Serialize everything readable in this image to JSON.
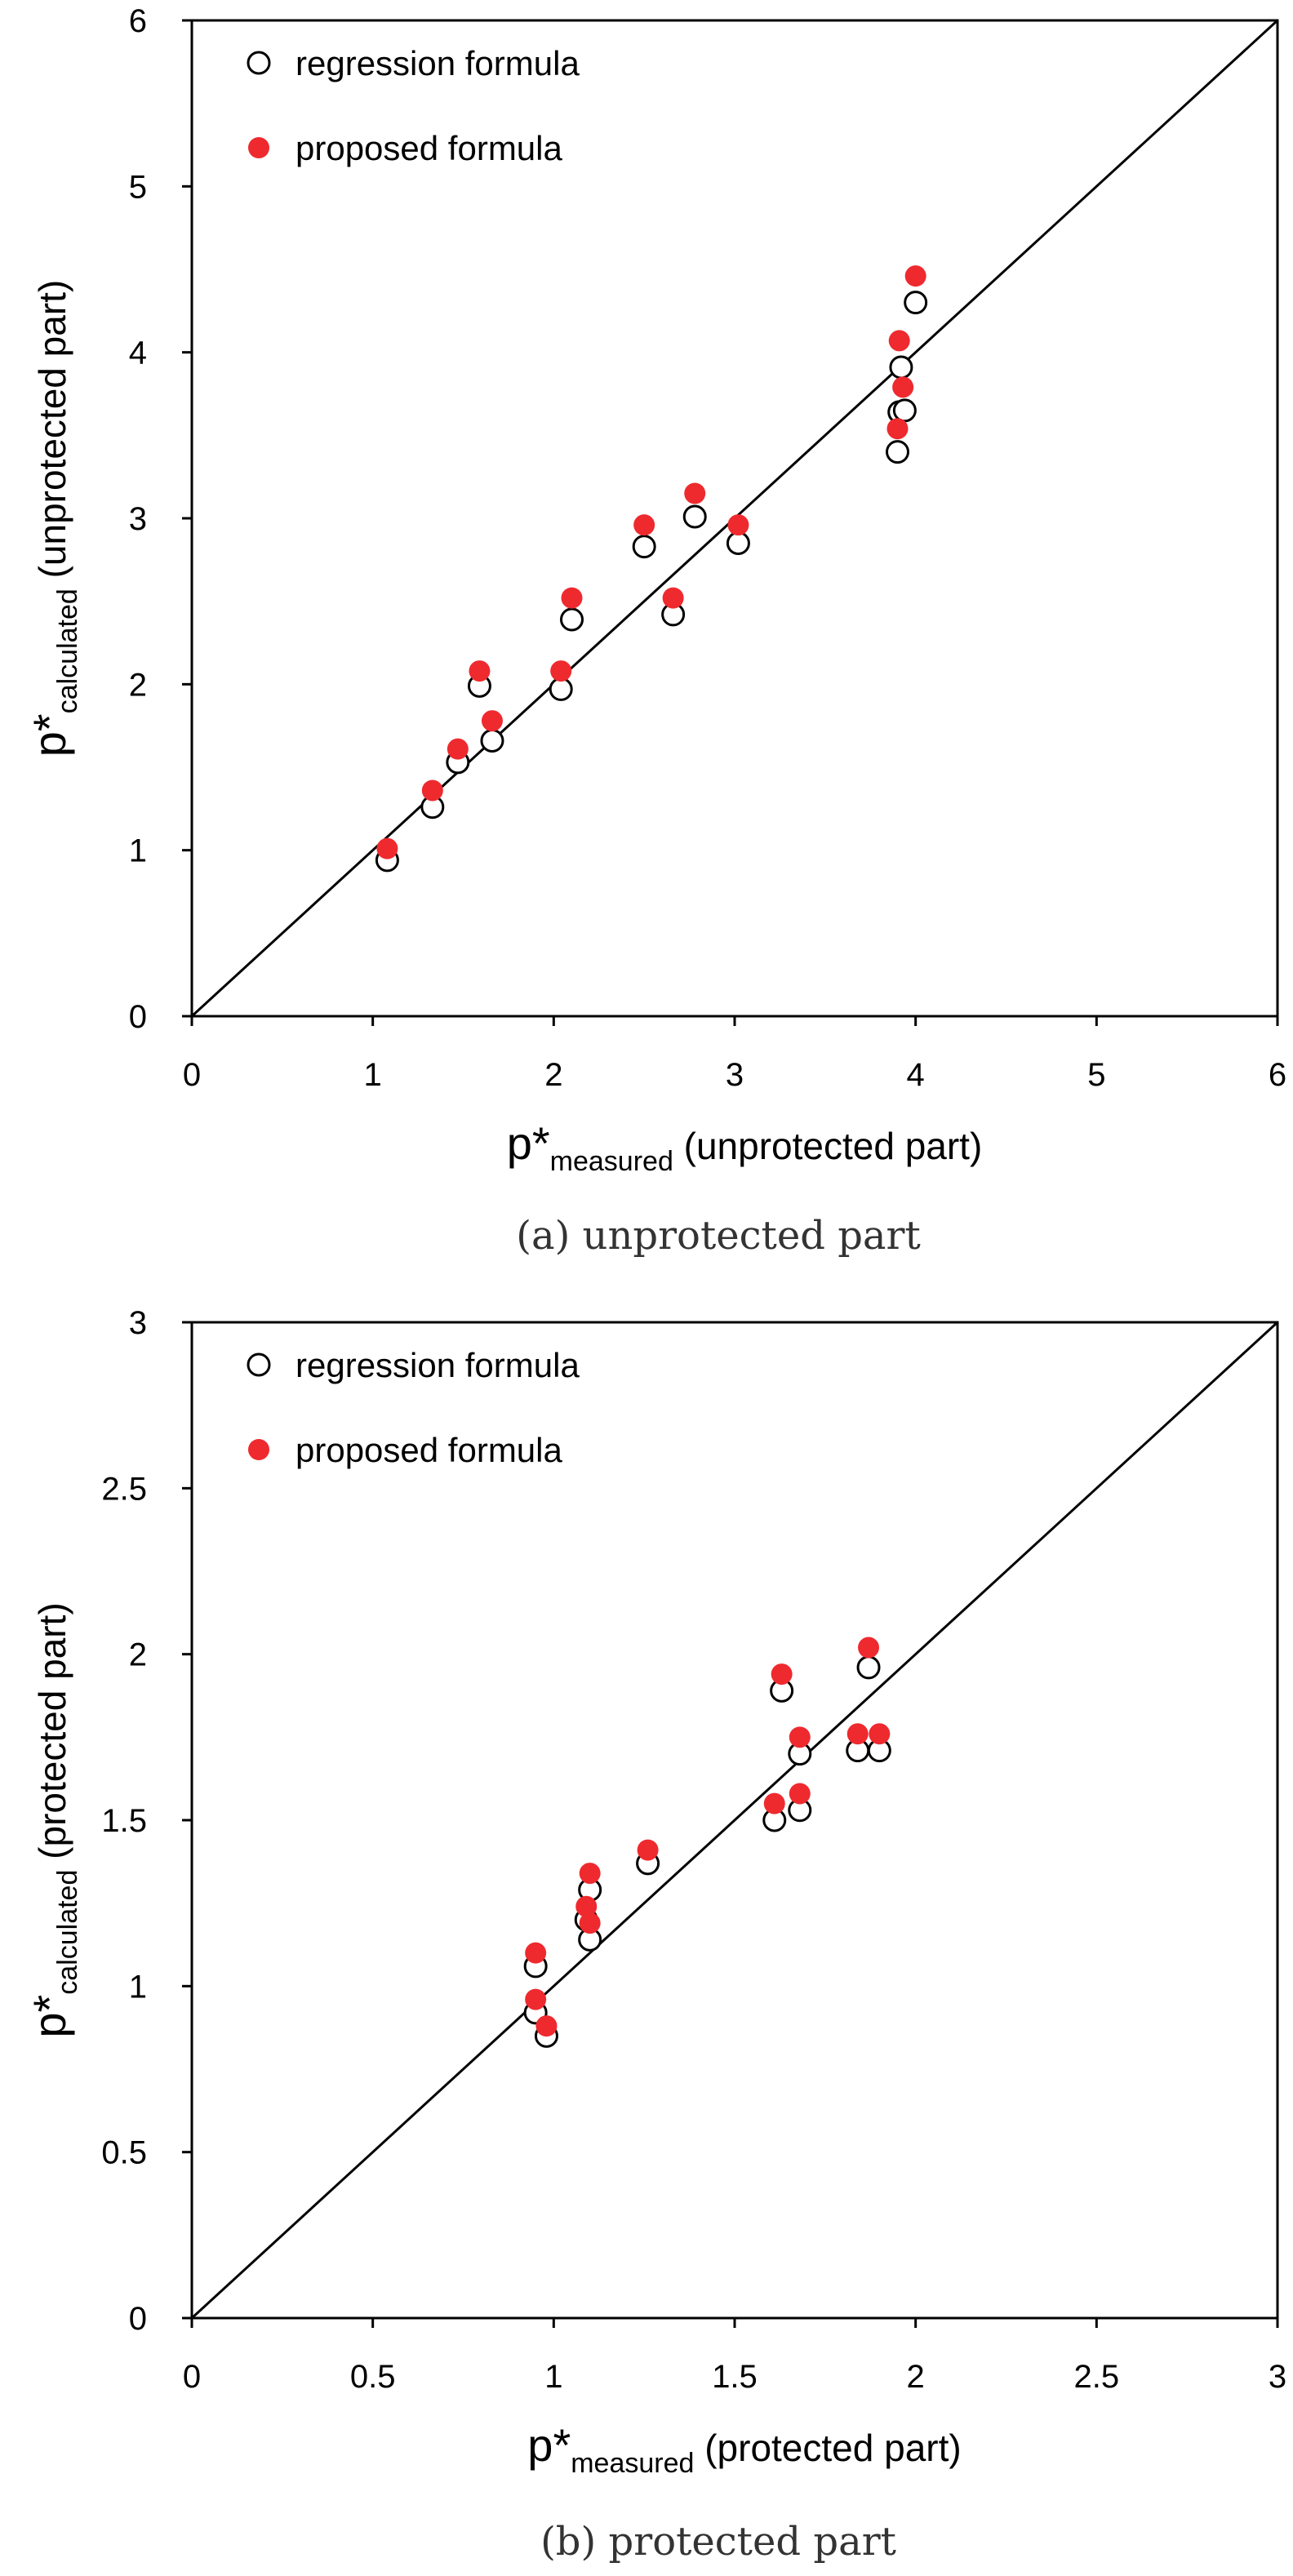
{
  "chart_data": [
    {
      "type": "scatter",
      "caption": "(a) unprotected part",
      "xlabel_main": "p*",
      "xlabel_sub": "measured",
      "xlabel_rest": " (unprotected part)",
      "ylabel_main": "p*",
      "ylabel_sub": "calculated",
      "ylabel_rest": " (unprotected part)",
      "xlim": [
        0,
        6
      ],
      "ylim": [
        0,
        6
      ],
      "xticks": [
        0,
        1,
        2,
        3,
        4,
        5,
        6
      ],
      "yticks": [
        0,
        1,
        2,
        3,
        4,
        5,
        6
      ],
      "xtick_labels": [
        "0",
        "1",
        "2",
        "3",
        "4",
        "5",
        "6"
      ],
      "ytick_labels": [
        "0",
        "1",
        "2",
        "3",
        "4",
        "5",
        "6"
      ],
      "reference_line": "y = x",
      "legend_position": "top-left",
      "series": [
        {
          "name": "regression formula",
          "marker": "open-circle",
          "color": "#000000",
          "x": [
            1.08,
            1.33,
            1.47,
            1.59,
            1.66,
            2.04,
            2.1,
            2.5,
            2.66,
            2.78,
            3.02,
            3.9,
            3.91,
            3.92,
            3.94,
            4.0
          ],
          "y": [
            0.94,
            1.26,
            1.53,
            1.99,
            1.66,
            1.97,
            2.39,
            2.83,
            2.42,
            3.01,
            2.85,
            3.4,
            3.64,
            3.91,
            3.65,
            4.3
          ]
        },
        {
          "name": "proposed formula",
          "marker": "filled-circle",
          "color": "#ee2a2f",
          "x": [
            1.08,
            1.33,
            1.47,
            1.59,
            1.66,
            2.04,
            2.1,
            2.5,
            2.66,
            2.78,
            3.02,
            3.9,
            3.91,
            3.93,
            4.0
          ],
          "y": [
            1.01,
            1.36,
            1.61,
            2.08,
            1.78,
            2.08,
            2.52,
            2.96,
            2.52,
            3.15,
            2.96,
            3.54,
            4.07,
            3.79,
            4.46
          ]
        }
      ]
    },
    {
      "type": "scatter",
      "caption": "(b) protected part",
      "xlabel_main": "p*",
      "xlabel_sub": "measured",
      "xlabel_rest": " (protected part)",
      "ylabel_main": "p*",
      "ylabel_sub": "calculated",
      "ylabel_rest": " (protected part)",
      "xlim": [
        0,
        3
      ],
      "ylim": [
        0,
        3
      ],
      "xticks": [
        0,
        0.5,
        1,
        1.5,
        2,
        2.5,
        3
      ],
      "yticks": [
        0,
        0.5,
        1,
        1.5,
        2,
        2.5,
        3
      ],
      "xtick_labels": [
        "0",
        "0.5",
        "1",
        "1.5",
        "2",
        "2.5",
        "3"
      ],
      "ytick_labels": [
        "0",
        "0.5",
        "1",
        "1.5",
        "2",
        "2.5",
        "3"
      ],
      "reference_line": "y = x",
      "legend_position": "top-left",
      "series": [
        {
          "name": "regression formula",
          "marker": "open-circle",
          "color": "#000000",
          "x": [
            0.95,
            0.95,
            0.98,
            1.09,
            1.1,
            1.1,
            1.26,
            1.61,
            1.63,
            1.68,
            1.68,
            1.84,
            1.87,
            1.9
          ],
          "y": [
            1.06,
            0.92,
            0.85,
            1.2,
            1.14,
            1.29,
            1.37,
            1.5,
            1.89,
            1.53,
            1.7,
            1.71,
            1.96,
            1.71
          ]
        },
        {
          "name": "proposed formula",
          "marker": "filled-circle",
          "color": "#ee2a2f",
          "x": [
            0.95,
            0.95,
            0.98,
            1.09,
            1.1,
            1.1,
            1.26,
            1.61,
            1.63,
            1.68,
            1.68,
            1.84,
            1.87,
            1.9
          ],
          "y": [
            1.1,
            0.96,
            0.88,
            1.24,
            1.19,
            1.34,
            1.41,
            1.55,
            1.94,
            1.58,
            1.75,
            1.76,
            2.02,
            1.76
          ]
        }
      ]
    }
  ]
}
